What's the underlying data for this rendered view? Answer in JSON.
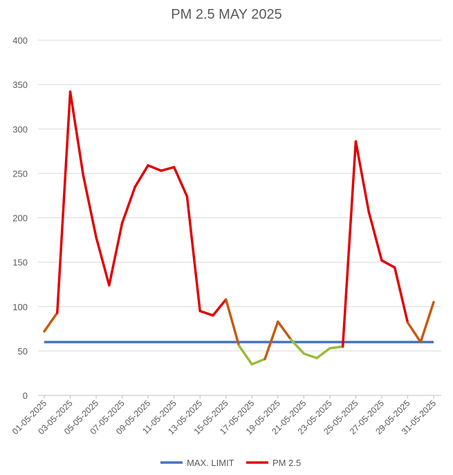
{
  "chart_data": {
    "type": "line",
    "title": "PM 2.5 MAY 2025",
    "xlabel": "",
    "ylabel": "",
    "ylim": [
      0,
      400
    ],
    "yticks": [
      0,
      50,
      100,
      150,
      200,
      250,
      300,
      350,
      400
    ],
    "grid": true,
    "legend_position": "bottom",
    "x": [
      "01-05-2025",
      "02-05-2025",
      "03-05-2025",
      "04-05-2025",
      "05-05-2025",
      "06-05-2025",
      "07-05-2025",
      "08-05-2025",
      "09-05-2025",
      "10-05-2025",
      "11-05-2025",
      "12-05-2025",
      "13-05-2025",
      "14-05-2025",
      "15-05-2025",
      "16-05-2025",
      "17-05-2025",
      "18-05-2025",
      "19-05-2025",
      "20-05-2025",
      "21-05-2025",
      "22-05-2025",
      "23-05-2025",
      "24-05-2025",
      "25-05-2025",
      "26-05-2025",
      "27-05-2025",
      "28-05-2025",
      "29-05-2025",
      "30-05-2025",
      "31-05-2025"
    ],
    "xticks_shown": [
      "01-05-2025",
      "03-05-2025",
      "05-05-2025",
      "07-05-2025",
      "09-05-2025",
      "11-05-2025",
      "13-05-2025",
      "15-05-2025",
      "17-05-2025",
      "19-05-2025",
      "21-05-2025",
      "23-05-2025",
      "25-05-2025",
      "27-05-2025",
      "29-05-2025",
      "31-05-2025"
    ],
    "series": [
      {
        "name": "MAX. LIMIT",
        "color": "#4472c4",
        "values": [
          60,
          60,
          60,
          60,
          60,
          60,
          60,
          60,
          60,
          60,
          60,
          60,
          60,
          60,
          60,
          60,
          60,
          60,
          60,
          60,
          60,
          60,
          60,
          60,
          60,
          60,
          60,
          60,
          60,
          60,
          60
        ]
      },
      {
        "name": "PM 2.5",
        "color": "#e00000",
        "values": [
          72,
          93,
          342,
          248,
          178,
          124,
          194,
          235,
          259,
          253,
          257,
          224,
          95,
          90,
          108,
          56,
          35,
          41,
          83,
          63,
          47,
          42,
          53,
          55,
          286,
          207,
          152,
          144,
          82,
          60,
          105
        ]
      }
    ],
    "line_segment_colors": {
      "high": "#e00000",
      "mid": "#c55a11",
      "low": "#9bbb3b"
    }
  }
}
